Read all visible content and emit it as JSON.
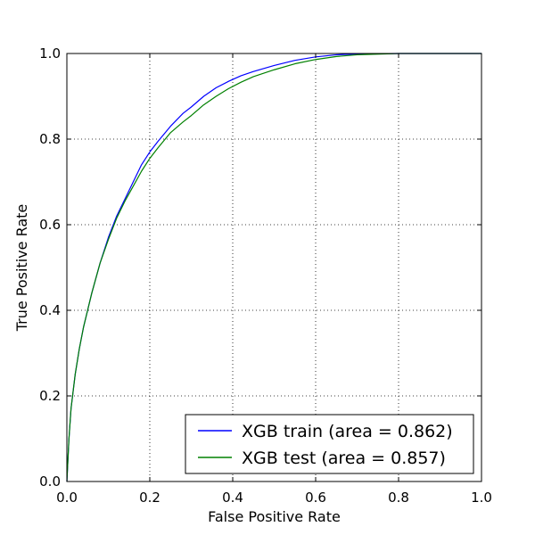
{
  "chart_data": {
    "type": "line",
    "title": "",
    "xlabel": "False Positive Rate",
    "ylabel": "True Positive Rate",
    "xlim": [
      0,
      1
    ],
    "ylim": [
      0,
      1
    ],
    "grid": true,
    "legend_position": "lower-right",
    "x_ticks": [
      "0.0",
      "0.2",
      "0.4",
      "0.6",
      "0.8",
      "1.0"
    ],
    "y_ticks": [
      "0.0",
      "0.2",
      "0.4",
      "0.6",
      "0.8",
      "1.0"
    ],
    "series": [
      {
        "name": "XGB train (area = 0.862)",
        "color": "#0000ff",
        "x": [
          0,
          0.005,
          0.01,
          0.02,
          0.03,
          0.04,
          0.05,
          0.06,
          0.08,
          0.1,
          0.12,
          0.14,
          0.16,
          0.18,
          0.2,
          0.22,
          0.25,
          0.28,
          0.3,
          0.33,
          0.36,
          0.39,
          0.42,
          0.45,
          0.5,
          0.55,
          0.6,
          0.65,
          0.7,
          0.8,
          0.9,
          1.0
        ],
        "y": [
          0,
          0.1,
          0.17,
          0.25,
          0.31,
          0.36,
          0.4,
          0.44,
          0.51,
          0.57,
          0.62,
          0.66,
          0.7,
          0.74,
          0.77,
          0.795,
          0.83,
          0.86,
          0.875,
          0.9,
          0.92,
          0.935,
          0.948,
          0.958,
          0.972,
          0.984,
          0.992,
          0.997,
          0.999,
          1.0,
          1.0,
          1.0
        ]
      },
      {
        "name": "XGB test (area = 0.857)",
        "color": "#008000",
        "x": [
          0,
          0.005,
          0.01,
          0.02,
          0.03,
          0.04,
          0.05,
          0.06,
          0.08,
          0.1,
          0.12,
          0.14,
          0.16,
          0.18,
          0.2,
          0.22,
          0.25,
          0.28,
          0.3,
          0.33,
          0.36,
          0.39,
          0.42,
          0.45,
          0.5,
          0.55,
          0.6,
          0.65,
          0.7,
          0.8,
          0.9,
          1.0
        ],
        "y": [
          0,
          0.1,
          0.17,
          0.25,
          0.31,
          0.36,
          0.4,
          0.44,
          0.51,
          0.565,
          0.615,
          0.655,
          0.69,
          0.725,
          0.755,
          0.78,
          0.815,
          0.84,
          0.855,
          0.88,
          0.9,
          0.918,
          0.933,
          0.946,
          0.962,
          0.976,
          0.986,
          0.993,
          0.997,
          1.0,
          1.0,
          1.0
        ]
      }
    ]
  }
}
